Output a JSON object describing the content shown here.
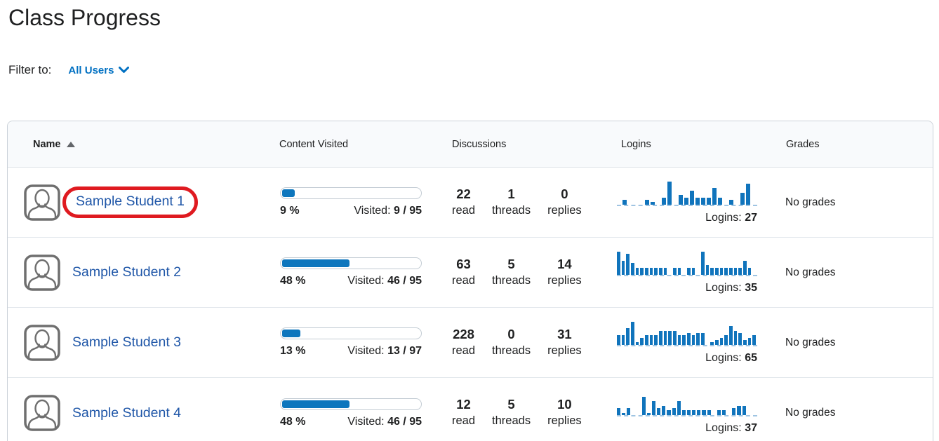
{
  "page": {
    "title": "Class Progress"
  },
  "filter": {
    "label": "Filter to:",
    "value": "All Users"
  },
  "colors": {
    "link_blue": "#0070c2",
    "name_link_blue": "#2057a8",
    "progress_blue": "#0d76bd",
    "spark_blue": "#1074bc",
    "annotation_red": "#df1a20",
    "header_bg": "#f8fafc"
  },
  "table": {
    "columns": [
      "Name",
      "Content Visited",
      "Discussions",
      "Logins",
      "Grades"
    ],
    "sorted_column": "Name",
    "sort_direction": "ascending",
    "discussion_labels": {
      "read": "read",
      "threads": "threads",
      "replies": "replies"
    },
    "visited_label": "Visited:",
    "logins_label": "Logins:",
    "rows": [
      {
        "name": "Sample Student 1",
        "highlighted": true,
        "content": {
          "percent": "9 %",
          "percent_value": 9,
          "visited": "9 / 95"
        },
        "discussions": {
          "read": "22",
          "threads": "1",
          "replies": "0"
        },
        "logins": {
          "count": "27",
          "bars": [
            0,
            2,
            0,
            0,
            0,
            2,
            1,
            0,
            3,
            10,
            0,
            4,
            3,
            6,
            3,
            3,
            3,
            7,
            3,
            0,
            2,
            0,
            5,
            9,
            0
          ]
        },
        "grades": "No grades"
      },
      {
        "name": "Sample Student 2",
        "highlighted": false,
        "content": {
          "percent": "48 %",
          "percent_value": 48,
          "visited": "46 / 95"
        },
        "discussions": {
          "read": "63",
          "threads": "5",
          "replies": "14"
        },
        "logins": {
          "count": "35",
          "bars": [
            10,
            6,
            9,
            5,
            3,
            3,
            3,
            3,
            3,
            3,
            3,
            0,
            3,
            3,
            0,
            3,
            3,
            0,
            10,
            4,
            3,
            3,
            3,
            3,
            3,
            3,
            3,
            6,
            3,
            0
          ]
        },
        "grades": "No grades"
      },
      {
        "name": "Sample Student 3",
        "highlighted": false,
        "content": {
          "percent": "13 %",
          "percent_value": 13,
          "visited": "13 / 97"
        },
        "discussions": {
          "read": "228",
          "threads": "0",
          "replies": "31"
        },
        "logins": {
          "count": "65",
          "bars": [
            4,
            4,
            7,
            10,
            1,
            3,
            4,
            4,
            4,
            6,
            6,
            6,
            6,
            4,
            4,
            5,
            4,
            5,
            5,
            0,
            1,
            2,
            3,
            4,
            8,
            6,
            5,
            2,
            3,
            4
          ]
        },
        "grades": "No grades"
      },
      {
        "name": "Sample Student 4",
        "highlighted": false,
        "content": {
          "percent": "48 %",
          "percent_value": 48,
          "visited": "46 / 95"
        },
        "discussions": {
          "read": "12",
          "threads": "5",
          "replies": "10"
        },
        "logins": {
          "count": "37",
          "bars": [
            3,
            1,
            3,
            0,
            0,
            8,
            1,
            6,
            3,
            4,
            2,
            3,
            6,
            2,
            2,
            2,
            2,
            2,
            2,
            0,
            2,
            2,
            0,
            3,
            4,
            4,
            0,
            0
          ]
        },
        "grades": "No grades"
      }
    ]
  }
}
